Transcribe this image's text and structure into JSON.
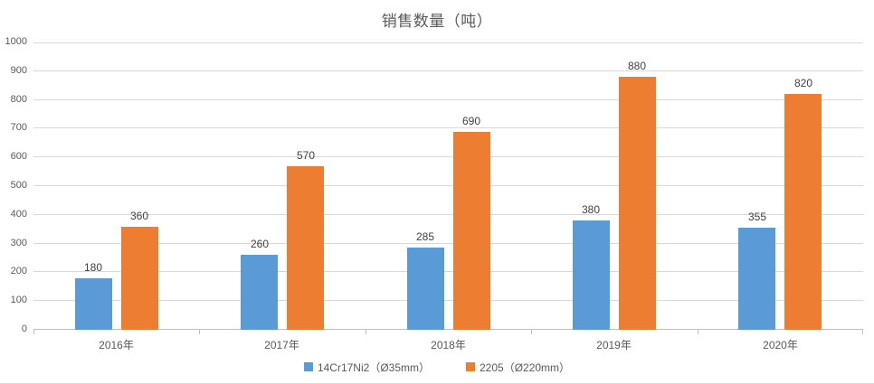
{
  "chart_data": {
    "type": "bar",
    "title": "销售数量（吨）",
    "categories": [
      "2016年",
      "2017年",
      "2018年",
      "2019年",
      "2020年"
    ],
    "series": [
      {
        "name": "14Cr17Ni2（Ø35mm）",
        "color": "#5B9BD5",
        "values": [
          180,
          260,
          285,
          380,
          355
        ]
      },
      {
        "name": "2205（Ø220mm）",
        "color": "#ED7D31",
        "values": [
          360,
          570,
          690,
          880,
          820
        ]
      }
    ],
    "ylim": [
      0,
      1000
    ],
    "ytick_step": 100,
    "ytick_labels": [
      "0",
      "100",
      "200",
      "300",
      "400",
      "500",
      "600",
      "700",
      "800",
      "900",
      "1000"
    ],
    "grid": true,
    "legend_position": "bottom",
    "data_labels": true
  },
  "colors": {
    "background": "#ffffff",
    "title_text": "#595959",
    "axis_text": "#595959",
    "data_label_text": "#404040",
    "gridline": "#d9d9d9",
    "axis_line": "#bfbfbf",
    "series1": "#5B9BD5",
    "series2": "#ED7D31"
  }
}
